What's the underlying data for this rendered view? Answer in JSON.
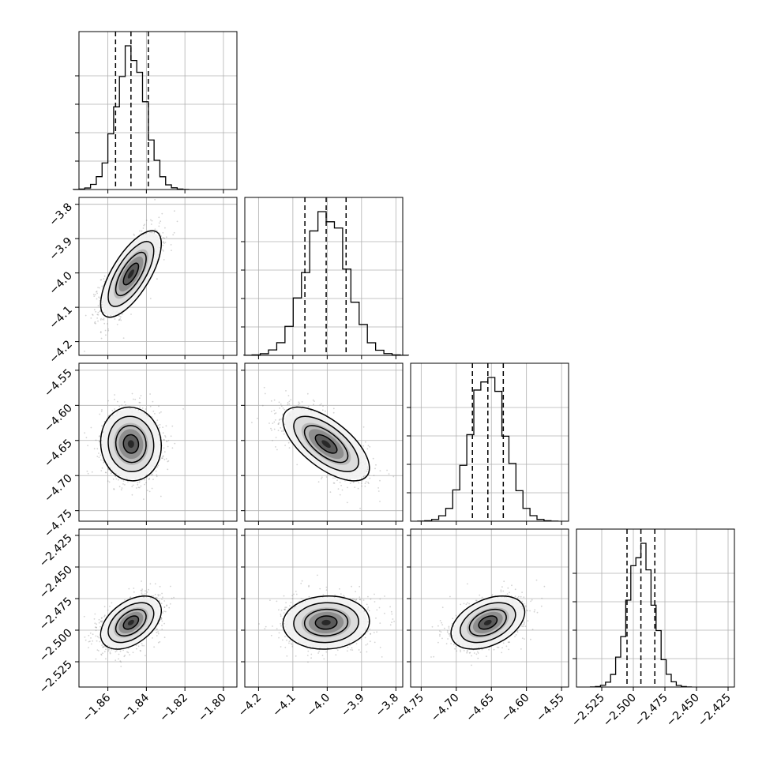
{
  "chart_data": {
    "type": "corner",
    "grid": true,
    "parameters": [
      {
        "ticks": [
          -1.86,
          -1.84,
          -1.82,
          -1.8
        ],
        "tick_labels": [
          "−1.86",
          "−1.84",
          "−1.82",
          "−1.80"
        ],
        "range": [
          -1.875,
          -1.793
        ],
        "mean": -1.848,
        "sd": 0.0075,
        "quantiles": [
          -1.856,
          -1.848,
          -1.839
        ]
      },
      {
        "ticks": [
          -4.2,
          -4.1,
          -4.0,
          -3.9,
          -3.8
        ],
        "tick_labels": [
          "−4.2",
          "−4.1",
          "−4.0",
          "−3.9",
          "−3.8"
        ],
        "range": [
          -4.24,
          -3.78
        ],
        "mean": -4.003,
        "sd": 0.06,
        "quantiles": [
          -4.065,
          -4.003,
          -3.945
        ]
      },
      {
        "ticks": [
          -4.75,
          -4.7,
          -4.65,
          -4.6,
          -4.55
        ],
        "tick_labels": [
          "−4.75",
          "−4.70",
          "−4.65",
          "−4.60",
          "−4.55"
        ],
        "range": [
          -4.765,
          -4.54
        ],
        "mean": -4.655,
        "sd": 0.025,
        "quantiles": [
          -4.677,
          -4.655,
          -4.633
        ]
      },
      {
        "ticks": [
          -2.525,
          -2.5,
          -2.475,
          -2.45,
          -2.425
        ],
        "tick_labels": [
          "−2.525",
          "−2.500",
          "−2.475",
          "−2.450",
          "−2.425"
        ],
        "range": [
          -2.545,
          -2.42
        ],
        "mean": -2.494,
        "sd": 0.01,
        "quantiles": [
          -2.505,
          -2.494,
          -2.483
        ]
      }
    ],
    "correlations": [
      {
        "pair": [
          1,
          0
        ],
        "rho": 0.7
      },
      {
        "pair": [
          2,
          0
        ],
        "rho": -0.05
      },
      {
        "pair": [
          2,
          1
        ],
        "rho": -0.65
      },
      {
        "pair": [
          3,
          0
        ],
        "rho": 0.45
      },
      {
        "pair": [
          3,
          1
        ],
        "rho": 0.05
      },
      {
        "pair": [
          3,
          2
        ],
        "rho": 0.4
      }
    ],
    "contour_levels_sigma": [
      0.5,
      1.0,
      1.5,
      2.0
    ],
    "colors": {
      "line": "#000000",
      "grid": "#b0b0b0",
      "scatter": "#808080"
    }
  }
}
